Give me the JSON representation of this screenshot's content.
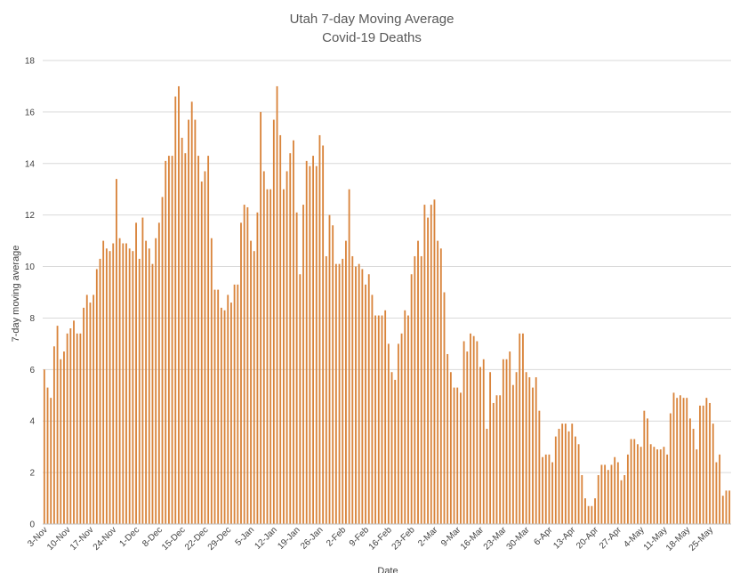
{
  "chart_data": {
    "type": "bar",
    "title": "Utah 7-day Moving Average",
    "subtitle": "Covid-19 Deaths",
    "xlabel": "Date",
    "ylabel": "7-day moving average",
    "ylim": [
      0,
      18
    ],
    "yticks": [
      0,
      2,
      4,
      6,
      8,
      10,
      12,
      14,
      16,
      18
    ],
    "grid": true,
    "legend": "none",
    "bar_color": "#d9843b",
    "x_tick_labels": [
      "3-Nov",
      "10-Nov",
      "17-Nov",
      "24-Nov",
      "1-Dec",
      "8-Dec",
      "15-Dec",
      "22-Dec",
      "29-Dec",
      "5-Jan",
      "12-Jan",
      "19-Jan",
      "26-Jan",
      "2-Feb",
      "9-Feb",
      "16-Feb",
      "23-Feb",
      "2-Mar",
      "9-Mar",
      "16-Mar",
      "23-Mar",
      "30-Mar",
      "6-Apr",
      "13-Apr",
      "20-Apr",
      "27-Apr",
      "4-May",
      "11-May",
      "18-May",
      "25-May"
    ],
    "values": [
      6.0,
      5.3,
      4.9,
      6.9,
      7.7,
      6.4,
      6.7,
      7.4,
      7.6,
      7.9,
      7.4,
      7.4,
      8.4,
      8.9,
      8.6,
      8.9,
      9.9,
      10.3,
      11.0,
      10.7,
      10.6,
      10.9,
      13.4,
      11.1,
      10.9,
      10.9,
      10.7,
      10.6,
      11.7,
      10.3,
      11.9,
      11.0,
      10.7,
      10.1,
      11.1,
      11.7,
      12.7,
      14.1,
      14.3,
      14.3,
      16.6,
      17.0,
      15.0,
      14.4,
      15.7,
      16.4,
      15.7,
      14.3,
      13.3,
      13.7,
      14.3,
      11.1,
      9.1,
      9.1,
      8.4,
      8.3,
      8.9,
      8.6,
      9.3,
      9.3,
      11.7,
      12.4,
      12.3,
      11.0,
      10.6,
      12.1,
      16.0,
      13.7,
      13.0,
      13.0,
      15.7,
      17.0,
      15.1,
      13.0,
      13.7,
      14.4,
      14.9,
      12.1,
      9.7,
      12.4,
      14.1,
      13.9,
      14.3,
      13.9,
      15.1,
      14.7,
      10.4,
      12.0,
      11.6,
      10.1,
      10.1,
      10.3,
      11.0,
      13.0,
      10.4,
      10.0,
      10.1,
      9.9,
      9.3,
      9.7,
      8.9,
      8.1,
      8.1,
      8.1,
      8.3,
      7.0,
      5.9,
      5.6,
      7.0,
      7.4,
      8.3,
      8.1,
      9.7,
      10.4,
      11.0,
      10.4,
      12.4,
      11.9,
      12.4,
      12.6,
      11.0,
      10.7,
      9.0,
      6.6,
      5.9,
      5.3,
      5.3,
      5.1,
      7.1,
      6.7,
      7.4,
      7.3,
      7.1,
      6.1,
      6.4,
      3.7,
      5.9,
      4.7,
      5.0,
      5.0,
      6.4,
      6.4,
      6.7,
      5.4,
      5.9,
      7.4,
      7.4,
      5.9,
      5.7,
      5.3,
      5.7,
      4.4,
      2.6,
      2.7,
      2.7,
      2.4,
      3.4,
      3.7,
      3.9,
      3.9,
      3.6,
      3.9,
      3.4,
      3.1,
      1.9,
      1.0,
      0.7,
      0.7,
      1.0,
      1.9,
      2.3,
      2.3,
      2.1,
      2.3,
      2.6,
      2.4,
      1.7,
      1.9,
      2.7,
      3.3,
      3.3,
      3.1,
      3.0,
      4.4,
      4.1,
      3.1,
      3.0,
      2.9,
      2.9,
      3.0,
      2.7,
      4.3,
      5.1,
      4.9,
      5.0,
      4.9,
      4.9,
      4.1,
      3.7,
      2.9,
      4.6,
      4.6,
      4.9,
      4.7,
      3.9,
      2.4,
      2.7,
      1.1,
      1.3,
      1.3
    ]
  }
}
